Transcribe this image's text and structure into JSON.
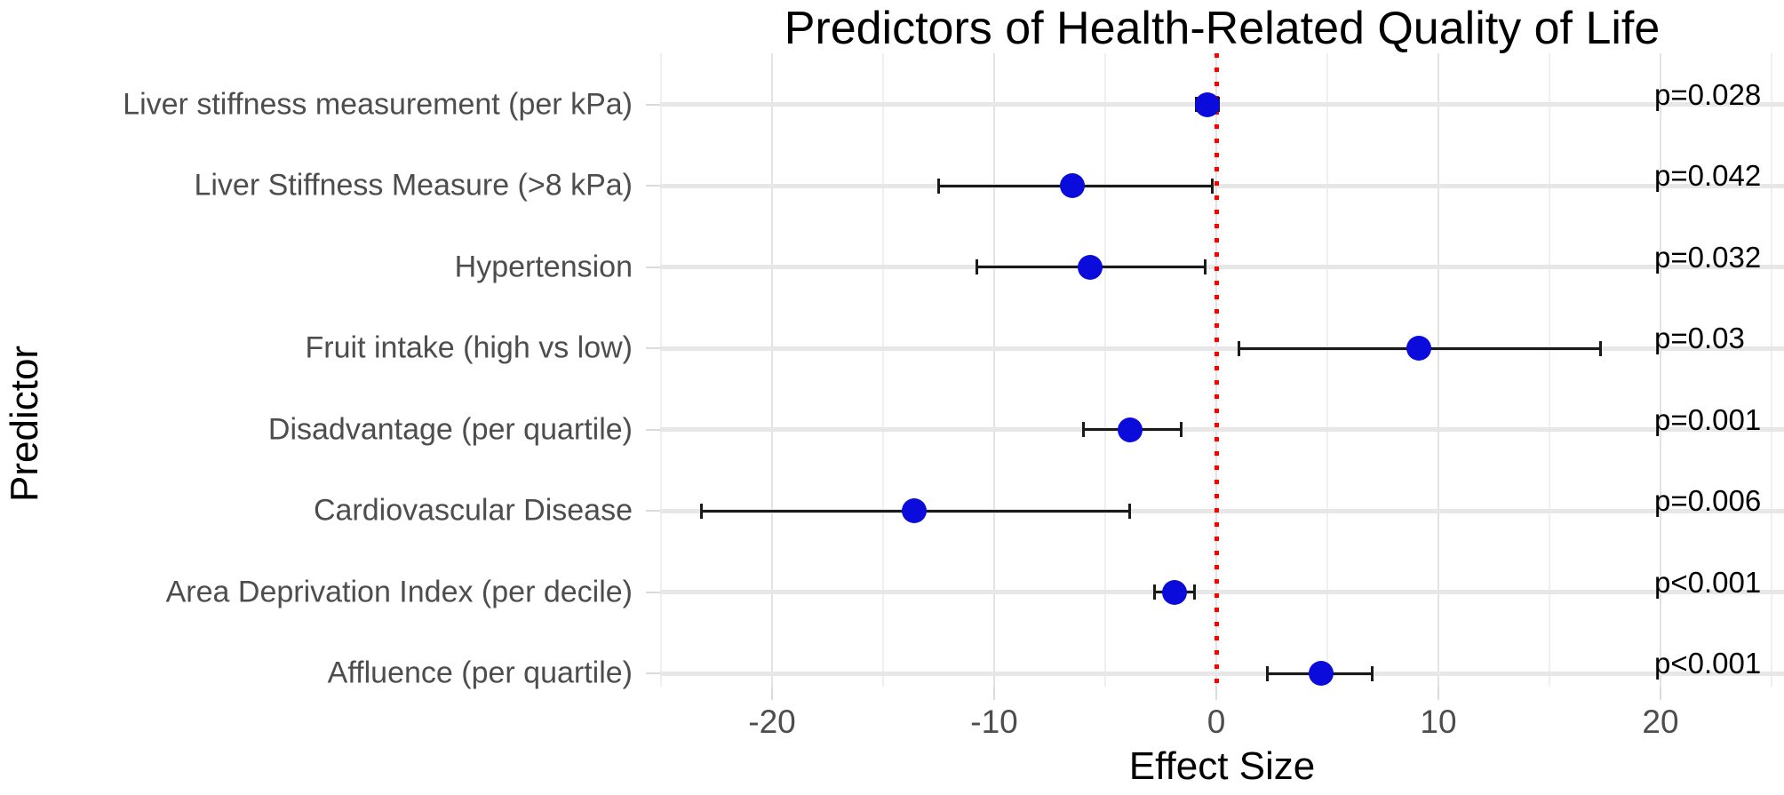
{
  "chart_data": {
    "type": "scatter",
    "variant": "forest-dot-whisker",
    "title": "Predictors of Health-Related Quality of Life",
    "xlabel": "Effect Size",
    "ylabel": "Predictor",
    "xlim": [
      -25.2,
      25.6
    ],
    "x_major_ticks": [
      -20,
      -10,
      0,
      10,
      20
    ],
    "x_minor_ticks": [
      -25,
      -15,
      -5,
      5,
      15,
      25
    ],
    "grid": true,
    "legend_position": "none",
    "point_color": "#0B0BDB",
    "reference_line": {
      "x": 0,
      "color": "#FF0000",
      "style": "dotted"
    },
    "rows": [
      {
        "label": "Liver stiffness measurement (per kPa)",
        "estimate": -0.4,
        "ci_low": -0.9,
        "ci_high": 0.1,
        "p": "p=0.028"
      },
      {
        "label": "Liver Stiffness Measure (>8 kPa)",
        "estimate": -6.5,
        "ci_low": -12.5,
        "ci_high": -0.2,
        "p": "p=0.042"
      },
      {
        "label": "Hypertension",
        "estimate": -5.7,
        "ci_low": -10.8,
        "ci_high": -0.5,
        "p": "p=0.032"
      },
      {
        "label": "Fruit intake (high vs low)",
        "estimate": 9.1,
        "ci_low": 1.0,
        "ci_high": 17.3,
        "p": "p=0.03"
      },
      {
        "label": "Disadvantage (per quartile)",
        "estimate": -3.9,
        "ci_low": -6.0,
        "ci_high": -1.6,
        "p": "p=0.001"
      },
      {
        "label": "Cardiovascular Disease",
        "estimate": -13.6,
        "ci_low": -23.2,
        "ci_high": -3.9,
        "p": "p=0.006"
      },
      {
        "label": "Area Deprivation Index (per decile)",
        "estimate": -1.9,
        "ci_low": -2.8,
        "ci_high": -1.0,
        "p": "p<0.001"
      },
      {
        "label": "Affluence (per quartile)",
        "estimate": 4.7,
        "ci_low": 2.3,
        "ci_high": 7.0,
        "p": "p<0.001"
      }
    ]
  }
}
